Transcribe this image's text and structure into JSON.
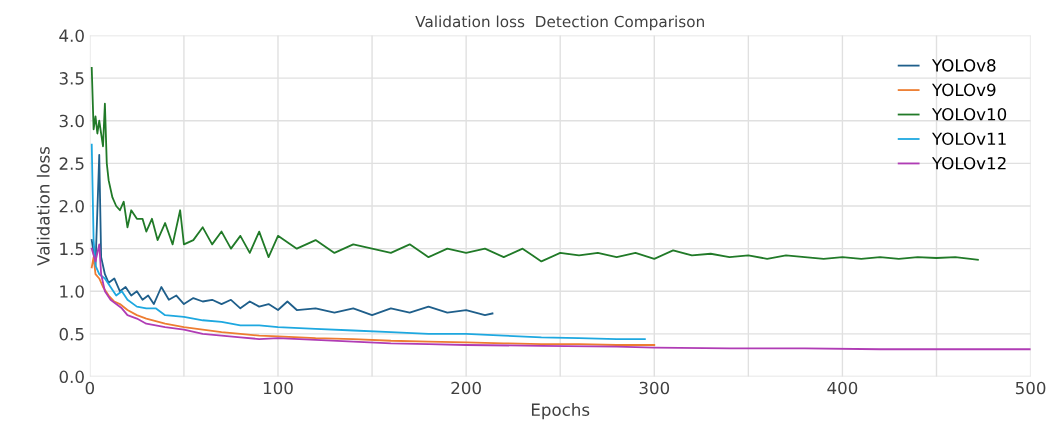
{
  "chart_data": {
    "type": "line",
    "title": "Validation loss  Detection Comparison",
    "xlabel": "Epochs",
    "ylabel": "Validation loss",
    "xlim": [
      0,
      500
    ],
    "xticks": [
      0,
      {
        "value": 50,
        "label": null
      },
      100,
      {
        "value": 150,
        "label": null
      },
      200,
      {
        "value": 250,
        "label": null
      },
      300,
      {
        "value": 350,
        "label": null
      },
      400,
      {
        "value": 450,
        "label": null
      },
      500
    ],
    "ylim": [
      0,
      4
    ],
    "yticks": [
      {
        "value": 0,
        "label": "0.0"
      },
      0.5,
      {
        "value": 1,
        "label": "1.0"
      },
      1.5,
      {
        "value": 2,
        "label": "2.0"
      },
      2.5,
      {
        "value": 3,
        "label": "3.0"
      },
      3.5,
      {
        "value": 4,
        "label": "4.0"
      }
    ],
    "grid": true,
    "legend": "top right",
    "marker": "none",
    "line_style": "solid",
    "series": [
      {
        "name": "YOLOv8",
        "color": "#1f5f8b",
        "x": [
          1,
          3,
          5,
          6,
          8,
          10,
          13,
          16,
          19,
          22,
          25,
          28,
          31,
          34,
          38,
          42,
          46,
          50,
          55,
          60,
          65,
          70,
          75,
          80,
          85,
          90,
          95,
          100,
          105,
          110,
          120,
          130,
          140,
          150,
          160,
          170,
          180,
          190,
          200,
          210,
          214
        ],
        "values": [
          1.6,
          1.3,
          2.6,
          1.4,
          1.2,
          1.1,
          1.15,
          1.0,
          1.05,
          0.95,
          1.0,
          0.9,
          0.95,
          0.85,
          1.05,
          0.9,
          0.95,
          0.85,
          0.92,
          0.88,
          0.9,
          0.85,
          0.9,
          0.8,
          0.88,
          0.82,
          0.85,
          0.78,
          0.88,
          0.78,
          0.8,
          0.75,
          0.8,
          0.72,
          0.8,
          0.75,
          0.82,
          0.75,
          0.78,
          0.72,
          0.74
        ]
      },
      {
        "name": "YOLOv9",
        "color": "#ed7d31",
        "x": [
          1,
          2,
          3,
          5,
          7,
          10,
          13,
          16,
          20,
          25,
          30,
          40,
          50,
          60,
          70,
          80,
          90,
          100,
          120,
          140,
          160,
          180,
          200,
          220,
          240,
          260,
          280,
          300
        ],
        "values": [
          1.28,
          1.4,
          1.2,
          1.15,
          1.05,
          0.95,
          0.88,
          0.85,
          0.78,
          0.72,
          0.68,
          0.62,
          0.58,
          0.55,
          0.52,
          0.5,
          0.48,
          0.47,
          0.45,
          0.44,
          0.42,
          0.41,
          0.4,
          0.39,
          0.38,
          0.38,
          0.37,
          0.37
        ]
      },
      {
        "name": "YOLOv10",
        "color": "#217a28",
        "x": [
          1,
          2,
          3,
          4,
          5,
          6,
          7,
          8,
          9,
          10,
          12,
          14,
          16,
          18,
          20,
          22,
          25,
          28,
          30,
          33,
          36,
          40,
          44,
          48,
          50,
          55,
          60,
          65,
          70,
          75,
          80,
          85,
          90,
          95,
          100,
          110,
          120,
          130,
          140,
          150,
          160,
          170,
          180,
          190,
          200,
          210,
          220,
          230,
          240,
          250,
          260,
          270,
          280,
          290,
          300,
          310,
          320,
          330,
          340,
          350,
          360,
          370,
          380,
          390,
          400,
          410,
          420,
          430,
          440,
          450,
          460,
          472
        ],
        "values": [
          3.62,
          2.9,
          3.05,
          2.85,
          3.0,
          2.85,
          2.7,
          3.2,
          2.5,
          2.3,
          2.1,
          2.0,
          1.95,
          2.05,
          1.75,
          1.95,
          1.85,
          1.85,
          1.7,
          1.85,
          1.6,
          1.8,
          1.55,
          1.95,
          1.55,
          1.6,
          1.75,
          1.55,
          1.7,
          1.5,
          1.65,
          1.45,
          1.7,
          1.4,
          1.65,
          1.5,
          1.6,
          1.45,
          1.55,
          1.5,
          1.45,
          1.55,
          1.4,
          1.5,
          1.45,
          1.5,
          1.4,
          1.5,
          1.35,
          1.45,
          1.42,
          1.45,
          1.4,
          1.45,
          1.38,
          1.48,
          1.42,
          1.44,
          1.4,
          1.42,
          1.38,
          1.42,
          1.4,
          1.38,
          1.4,
          1.38,
          1.4,
          1.38,
          1.4,
          1.39,
          1.4,
          1.37
        ]
      },
      {
        "name": "YOLOv11",
        "color": "#1ea8e0",
        "x": [
          1,
          2,
          3,
          5,
          8,
          11,
          14,
          17,
          20,
          25,
          30,
          35,
          40,
          50,
          60,
          70,
          80,
          90,
          100,
          120,
          140,
          160,
          180,
          200,
          220,
          240,
          260,
          280,
          295
        ],
        "values": [
          2.72,
          1.6,
          1.3,
          1.2,
          1.15,
          1.05,
          0.95,
          1.0,
          0.9,
          0.82,
          0.8,
          0.8,
          0.72,
          0.7,
          0.66,
          0.64,
          0.6,
          0.6,
          0.58,
          0.56,
          0.54,
          0.52,
          0.5,
          0.5,
          0.48,
          0.46,
          0.45,
          0.44,
          0.44
        ]
      },
      {
        "name": "YOLOv12",
        "color": "#b03cb5",
        "x": [
          1,
          3,
          5,
          6,
          8,
          11,
          14,
          17,
          20,
          25,
          30,
          40,
          50,
          60,
          70,
          80,
          90,
          100,
          120,
          140,
          160,
          180,
          200,
          240,
          280,
          300,
          340,
          380,
          420,
          460,
          500
        ],
        "values": [
          1.5,
          1.35,
          1.55,
          1.2,
          1.0,
          0.9,
          0.85,
          0.8,
          0.72,
          0.68,
          0.62,
          0.58,
          0.55,
          0.5,
          0.48,
          0.46,
          0.44,
          0.45,
          0.43,
          0.41,
          0.39,
          0.38,
          0.37,
          0.36,
          0.35,
          0.34,
          0.33,
          0.33,
          0.32,
          0.32,
          0.32
        ]
      }
    ]
  }
}
